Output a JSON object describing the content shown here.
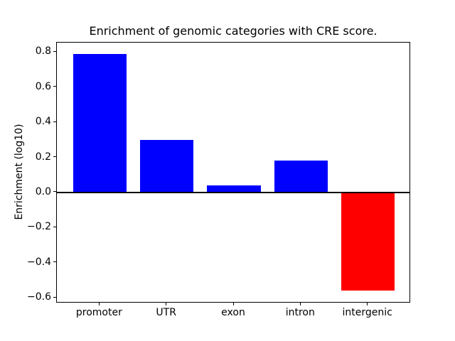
{
  "chart_data": {
    "type": "bar",
    "title": "Enrichment of genomic categories with CRE score.",
    "ylabel": "Enrichment (log10)",
    "xlabel": "",
    "categories": [
      "promoter",
      "UTR",
      "exon",
      "intron",
      "intergenic"
    ],
    "values": [
      0.79,
      0.3,
      0.04,
      0.18,
      -0.56
    ],
    "bar_colors": [
      "#0000ff",
      "#0000ff",
      "#0000ff",
      "#0000ff",
      "#ff0000"
    ],
    "positive_color": "#0000ff",
    "negative_color": "#ff0000",
    "yticks": [
      0.8,
      0.6,
      0.4,
      0.2,
      0.0,
      -0.2,
      -0.4,
      -0.6
    ],
    "ytick_labels": [
      "0.8",
      "0.6",
      "0.4",
      "0.2",
      "0.0",
      "−0.2",
      "−0.4",
      "−0.6"
    ],
    "ylim": [
      -0.632,
      0.854
    ],
    "xlim": [
      -0.64,
      4.64
    ],
    "bar_width": 0.8,
    "grid": false,
    "legend": null,
    "zero_line": true,
    "axis_color": "#000000",
    "text_color": "#000000",
    "background_color": "#ffffff"
  }
}
